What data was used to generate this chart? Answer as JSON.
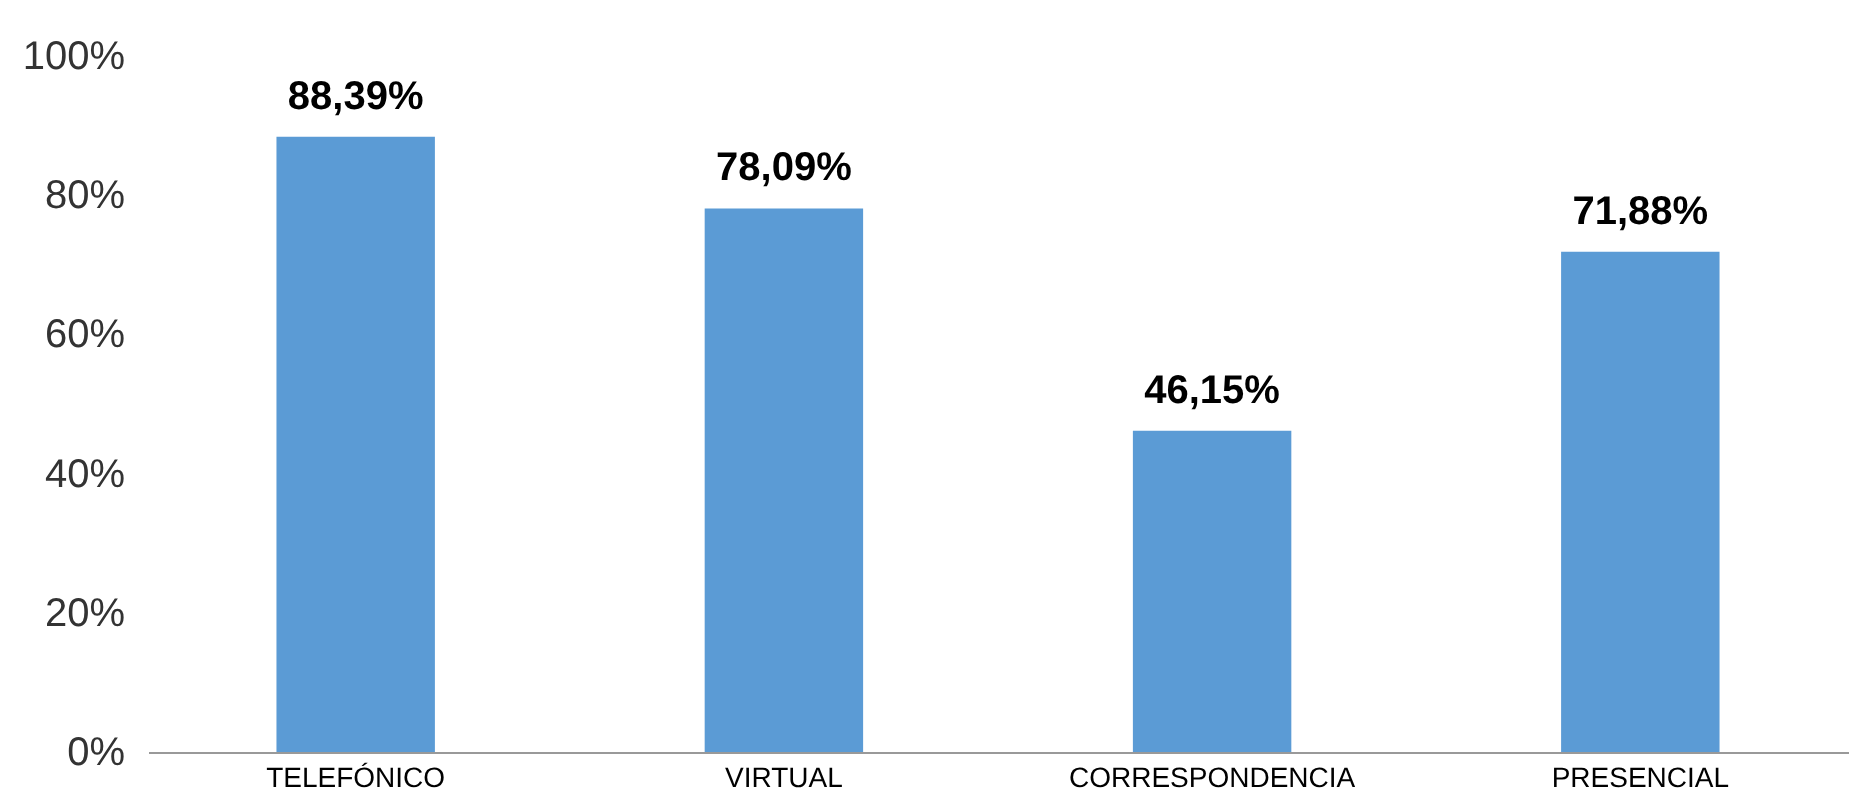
{
  "chart_data": {
    "type": "bar",
    "categories": [
      "TELEFÓNICO",
      "VIRTUAL",
      "CORRESPONDENCIA",
      "PRESENCIAL"
    ],
    "values": [
      88.39,
      78.09,
      46.15,
      71.88
    ],
    "value_labels": [
      "88,39%",
      "78,09%",
      "46,15%",
      "71,88%"
    ],
    "color": "#5b9bd5",
    "ylim": [
      0,
      100
    ],
    "yticks": [
      {
        "value": 0,
        "label": "0%"
      },
      {
        "value": 20,
        "label": "20%"
      },
      {
        "value": 40,
        "label": "40%"
      },
      {
        "value": 60,
        "label": "60%"
      },
      {
        "value": 80,
        "label": "80%"
      },
      {
        "value": 100,
        "label": "100%"
      }
    ],
    "grid": false
  }
}
